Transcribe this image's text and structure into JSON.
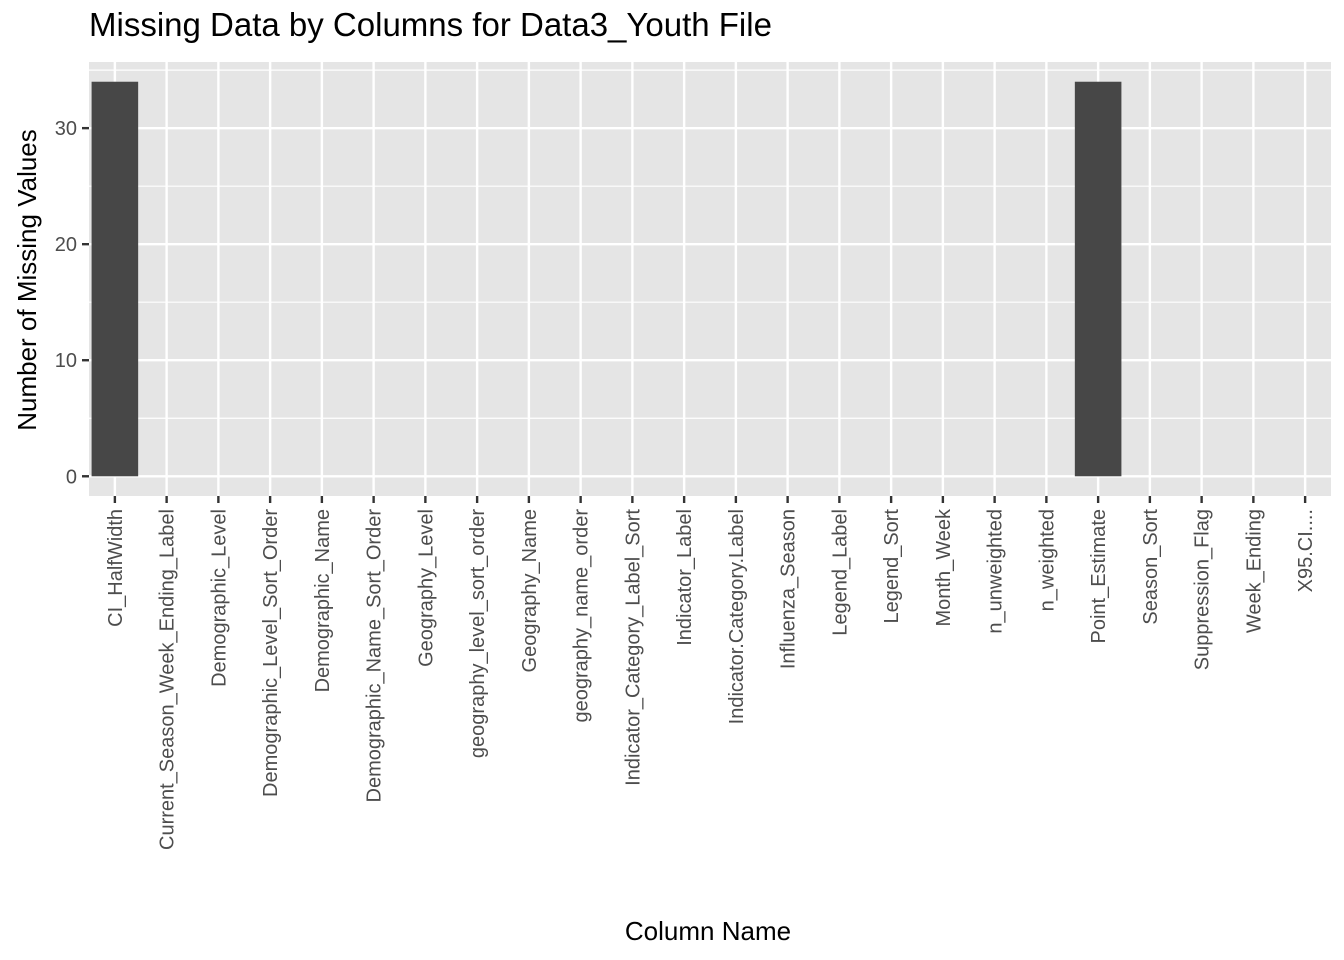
{
  "chart_data": {
    "type": "bar",
    "title": "Missing Data by Columns for Data3_Youth File",
    "xlabel": "Column Name",
    "ylabel": "Number of Missing Values",
    "categories": [
      "CI_HalfWidth",
      "Current_Season_Week_Ending_Label",
      "Demographic_Level",
      "Demographic_Level_Sort_Order",
      "Demographic_Name",
      "Demographic_Name_Sort_Order",
      "Geography_Level",
      "geography_level_sort_order",
      "Geography_Name",
      "geography_name_order",
      "Indicator_Category_Label_Sort",
      "Indicator_Label",
      "Indicator.Category.Label",
      "Influenza_Season",
      "Legend_Label",
      "Legend_Sort",
      "Month_Week",
      "n_unweighted",
      "n_weighted",
      "Point_Estimate",
      "Season_Sort",
      "Suppression_Flag",
      "Week_Ending",
      "X95.CI...."
    ],
    "values": [
      34,
      0,
      0,
      0,
      0,
      0,
      0,
      0,
      0,
      0,
      0,
      0,
      0,
      0,
      0,
      0,
      0,
      0,
      0,
      34,
      0,
      0,
      0,
      0
    ],
    "yticks": [
      0,
      10,
      20,
      30
    ],
    "ylim": [
      -1.7,
      35.7
    ],
    "grid": true,
    "colors": {
      "bar": "#474747",
      "panel": "#e5e5e5",
      "grid": "#ffffff",
      "tick": "#333333"
    }
  }
}
